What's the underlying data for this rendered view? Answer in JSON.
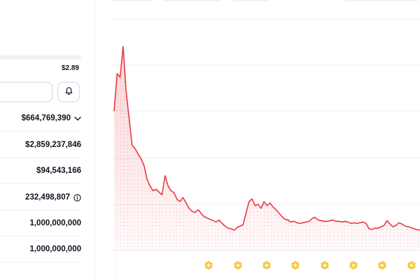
{
  "stats": {
    "price_high": "$2.89",
    "market_cap": "$664,769,390",
    "fdv": "$2,859,237,846",
    "volume_24h": "$94,543,166",
    "circulating_supply": "232,498,807",
    "total_supply": "1,000,000,000",
    "max_supply": "1,000,000,000"
  },
  "icons": {
    "bell": "bell-icon",
    "chevron": "chevron-down-icon",
    "info": "info-icon",
    "event": "event-marker-icon"
  },
  "colors": {
    "line": "#ea3943",
    "fill": "#fde4e5",
    "grid": "#eff2f5",
    "marker": "#f6c94a"
  },
  "chart_data": {
    "type": "area",
    "series": [
      {
        "values": [
          2.05,
          2.6,
          2.55,
          3.0,
          2.35,
          1.95,
          1.55,
          1.5,
          1.42,
          1.35,
          1.25,
          1.05,
          0.95,
          0.88,
          0.9,
          0.86,
          0.82,
          1.1,
          0.95,
          0.88,
          0.85,
          0.75,
          0.72,
          0.78,
          0.7,
          0.62,
          0.58,
          0.56,
          0.6,
          0.55,
          0.5,
          0.48,
          0.46,
          0.44,
          0.42,
          0.45,
          0.4,
          0.36,
          0.33,
          0.32,
          0.3,
          0.34,
          0.36,
          0.38,
          0.55,
          0.72,
          0.76,
          0.66,
          0.68,
          0.62,
          0.72,
          0.66,
          0.7,
          0.64,
          0.6,
          0.55,
          0.5,
          0.46,
          0.45,
          0.42,
          0.43,
          0.41,
          0.4,
          0.41,
          0.42,
          0.43,
          0.47,
          0.49,
          0.45,
          0.44,
          0.43,
          0.43,
          0.44,
          0.45,
          0.43,
          0.43,
          0.42,
          0.43,
          0.42,
          0.4,
          0.41,
          0.4,
          0.41,
          0.42,
          0.4,
          0.32,
          0.31,
          0.33,
          0.33,
          0.35,
          0.37,
          0.44,
          0.39,
          0.35,
          0.37,
          0.41,
          0.39,
          0.36,
          0.35,
          0.34,
          0.32,
          0.31,
          0.3
        ]
      }
    ],
    "event_markers": 8,
    "grid": true
  }
}
